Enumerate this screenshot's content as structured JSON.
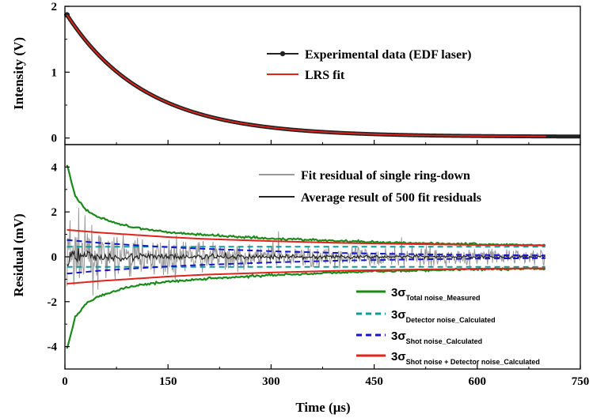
{
  "chart_data": [
    {
      "type": "line",
      "panel": "top",
      "xlim": [
        0,
        750
      ],
      "ylim": [
        -0.1,
        2.0
      ],
      "ylabel": "Intensity (V)",
      "yticks": [
        0,
        1,
        2
      ],
      "grid": false,
      "legend_position": "top-right",
      "series": [
        {
          "name": "Experimental data (EDF laser)",
          "color": "#222222",
          "marker": "dot",
          "model": {
            "kind": "exponential_decay",
            "amplitude_V": 1.85,
            "tau_us": 115,
            "offset_V": 0.02,
            "t_start_us": 3,
            "t_end_us": 750
          }
        },
        {
          "name": "LRS fit",
          "color": "#e0241b",
          "model": {
            "kind": "exponential_decay",
            "amplitude_V": 1.85,
            "tau_us": 115,
            "offset_V": 0.02,
            "t_start_us": 3,
            "t_end_us": 700
          }
        }
      ]
    },
    {
      "type": "line",
      "panel": "bottom",
      "xlim": [
        0,
        750
      ],
      "ylim": [
        -5,
        5
      ],
      "xlabel": "Time (μs)",
      "ylabel": "Residual (mV)",
      "xticks": [
        0,
        150,
        300,
        450,
        600,
        750
      ],
      "yticks": [
        -4,
        -2,
        0,
        2,
        4
      ],
      "grid": false,
      "series": [
        {
          "name": "Fit residual of single ring-down",
          "color": "#999999"
        },
        {
          "name": "Average result of 500 fit residuals",
          "color": "#222222"
        },
        {
          "name_main": "3σ",
          "name_sub": "Total noise_Measured",
          "color": "#1a8a1a",
          "style": "solid",
          "envelope": {
            "t_us": [
              3,
              15,
              30,
              50,
              75,
              100,
              150,
              200,
              300,
              400,
              500,
              600,
              700
            ],
            "value_mV": [
              4.1,
              2.7,
              2.1,
              1.75,
              1.5,
              1.3,
              1.1,
              0.98,
              0.82,
              0.7,
              0.62,
              0.56,
              0.52
            ]
          }
        },
        {
          "name_main": "3σ",
          "name_sub": "Detector noise_Calculated",
          "color": "#119a9a",
          "style": "dashed",
          "envelope": {
            "t_us": [
              3,
              700
            ],
            "value_mV": [
              0.45,
              0.45
            ]
          }
        },
        {
          "name_main": "3σ",
          "name_sub": "Shot noise_Calculated",
          "color": "#1414c8",
          "style": "dashed",
          "envelope": {
            "t_us": [
              3,
              50,
              100,
              150,
              200,
              300,
              400,
              500,
              600,
              700
            ],
            "value_mV": [
              0.75,
              0.62,
              0.52,
              0.43,
              0.36,
              0.25,
              0.17,
              0.12,
              0.08,
              0.06
            ]
          }
        },
        {
          "name_main": "3σ",
          "name_sub": "Shot noise + Detector noise_Calculated",
          "color": "#e0241b",
          "style": "solid",
          "envelope": {
            "t_us": [
              3,
              50,
              100,
              150,
              200,
              300,
              400,
              500,
              600,
              700
            ],
            "value_mV": [
              1.2,
              1.08,
              0.98,
              0.88,
              0.8,
              0.7,
              0.62,
              0.57,
              0.53,
              0.51
            ]
          }
        }
      ]
    }
  ]
}
